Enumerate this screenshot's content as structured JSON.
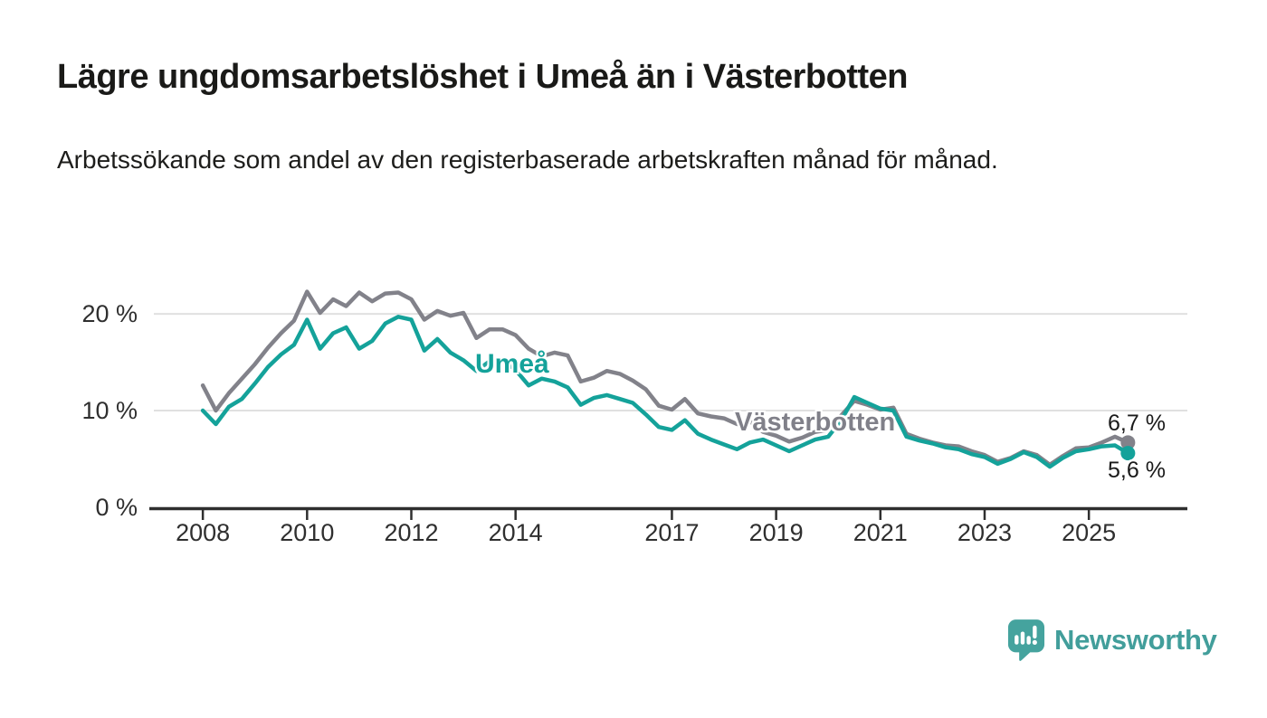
{
  "header": {
    "title": "Lägre ungdomsarbetslöshet i Umeå än i Västerbotten",
    "subtitle": "Arbetssökande som andel av den registerbaserade arbetskraften månad för månad."
  },
  "footer": {
    "brand": "Newsworthy"
  },
  "colors": {
    "background": "#ffffff",
    "title_text": "#1a1a18",
    "axis": "#2f2f2f",
    "gridline": "#e0e0e0",
    "umea_teal": "#14a29a",
    "vasterbotten_gray": "#82828a",
    "logo_teal": "#429e9b"
  },
  "chart_data": {
    "type": "line",
    "title": "Lägre ungdomsarbetslöshet i Umeå än i Västerbotten",
    "subtitle": "Arbetssökande som andel av den registerbaserade arbetskraften månad för månad.",
    "xlabel": "",
    "ylabel": "",
    "grid": "horizontal",
    "legend": "inline-labels",
    "xlim": [
      2007.06,
      2026.89
    ],
    "ylim": [
      0,
      24.4
    ],
    "x_ticks": [
      2008,
      2010,
      2012,
      2014,
      2017,
      2019,
      2021,
      2023,
      2025
    ],
    "x_tick_labels": [
      "2008",
      "2010",
      "2012",
      "2014",
      "2017",
      "2019",
      "2021",
      "2023",
      "2025"
    ],
    "y_ticks": [
      0,
      10,
      20
    ],
    "y_tick_labels": [
      "0 %",
      "10 %",
      "20 %"
    ],
    "series": [
      {
        "name": "Västerbotten",
        "color": "#82828a",
        "end_label": "6,7 %",
        "end_value": 6.7,
        "x_start": 2008.0,
        "x_step": 0.25,
        "values": [
          12.6,
          10.0,
          11.8,
          13.3,
          14.8,
          16.5,
          18.0,
          19.3,
          22.3,
          20.1,
          21.5,
          20.8,
          22.2,
          21.3,
          22.1,
          22.2,
          21.5,
          19.4,
          20.3,
          19.8,
          20.1,
          17.5,
          18.4,
          18.4,
          17.8,
          16.4,
          15.6,
          16.0,
          15.7,
          13.0,
          13.4,
          14.1,
          13.8,
          13.1,
          12.2,
          10.5,
          10.1,
          11.2,
          9.7,
          9.4,
          9.2,
          8.6,
          8.9,
          7.8,
          7.4,
          6.8,
          7.2,
          7.8,
          8.0,
          9.5,
          11.0,
          10.6,
          10.1,
          10.3,
          7.6,
          7.1,
          6.7,
          6.4,
          6.3,
          5.8,
          5.4,
          4.7,
          5.1,
          5.8,
          5.4,
          4.4,
          5.3,
          6.1,
          6.2,
          6.7,
          7.3,
          6.7
        ]
      },
      {
        "name": "Umeå",
        "color": "#14a29a",
        "end_label": "5,6 %",
        "end_value": 5.6,
        "x_start": 2008.0,
        "x_step": 0.25,
        "values": [
          10.0,
          8.6,
          10.4,
          11.2,
          12.8,
          14.5,
          15.8,
          16.8,
          19.4,
          16.4,
          18.0,
          18.6,
          16.4,
          17.2,
          19.0,
          19.7,
          19.4,
          16.2,
          17.4,
          16.0,
          15.2,
          14.1,
          15.1,
          15.3,
          14.2,
          12.6,
          13.3,
          13.0,
          12.4,
          10.6,
          11.3,
          11.6,
          11.2,
          10.8,
          9.6,
          8.3,
          8.0,
          9.0,
          7.6,
          7.0,
          6.5,
          6.0,
          6.7,
          7.0,
          6.4,
          5.8,
          6.4,
          7.0,
          7.3,
          9.0,
          11.4,
          10.8,
          10.2,
          10.0,
          7.3,
          6.9,
          6.6,
          6.2,
          6.0,
          5.5,
          5.2,
          4.5,
          5.0,
          5.7,
          5.2,
          4.2,
          5.1,
          5.8,
          6.0,
          6.3,
          6.4,
          5.6
        ]
      }
    ]
  }
}
